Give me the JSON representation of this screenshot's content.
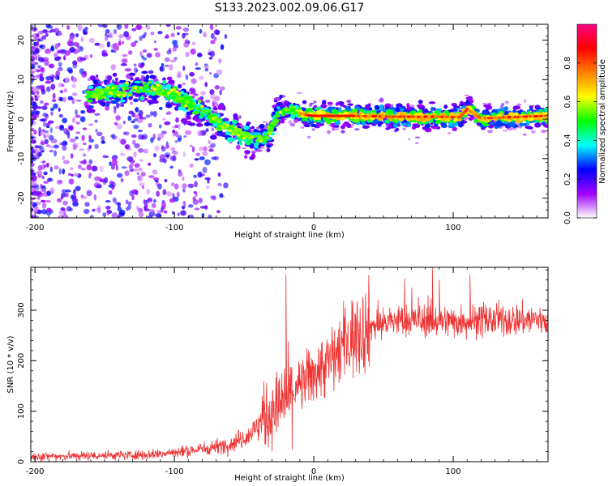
{
  "title": "S133.2023.002.09.06.G17",
  "chart_data": [
    {
      "type": "heatmap",
      "xlabel": "Height of straight line (km)",
      "ylabel": "Frequency (Hz)",
      "xlim": [
        -203,
        168
      ],
      "ylim": [
        -25,
        24
      ],
      "x_ticks": [
        -200,
        -100,
        0,
        100
      ],
      "y_ticks": [
        -20,
        -10,
        0,
        10,
        20
      ],
      "colorbar": {
        "label": "Normalized spectral amplitude",
        "range": [
          0,
          1
        ],
        "ticks": [
          "0.0",
          "0.2",
          "0.4",
          "0.6",
          "0.8"
        ],
        "colors": [
          "#ffffff",
          "#a000ff",
          "#0000ff",
          "#00ffff",
          "#00ff00",
          "#ffff00",
          "#ff8000",
          "#ff0000",
          "#ff0080"
        ]
      },
      "ridge": {
        "x": [
          -162,
          -140,
          -120,
          -105,
          -95,
          -85,
          -75,
          -65,
          -55,
          -45,
          -35,
          -30,
          -25,
          -20,
          -15,
          -5,
          0,
          30,
          60,
          90,
          105,
          110,
          120,
          140,
          168
        ],
        "y": [
          6,
          7,
          8,
          7,
          5,
          3,
          1,
          -2,
          -3,
          -5,
          -5,
          -2,
          2,
          2.5,
          2,
          1,
          0.8,
          0.8,
          0.6,
          0.6,
          0.5,
          2.5,
          0.2,
          0.5,
          0.8
        ]
      }
    },
    {
      "type": "line",
      "xlabel": "Height of straight line (km)",
      "ylabel": "SNR (10 * v/v)",
      "xlim": [
        -203,
        168
      ],
      "ylim": [
        0,
        385
      ],
      "x_ticks": [
        -200,
        -100,
        0,
        100
      ],
      "y_ticks": [
        0,
        100,
        200,
        300
      ],
      "color": "#ee3333",
      "trend": {
        "x": [
          -203,
          -160,
          -120,
          -100,
          -80,
          -60,
          -45,
          -35,
          -25,
          -10,
          0,
          10,
          20,
          30,
          40,
          60,
          100,
          130,
          168
        ],
        "y": [
          10,
          12,
          14,
          18,
          25,
          35,
          55,
          90,
          110,
          150,
          175,
          195,
          225,
          255,
          268,
          280,
          278,
          280,
          282
        ]
      },
      "peaks": [
        {
          "x": -20,
          "y": 370
        },
        {
          "x": 85,
          "y": 385
        },
        {
          "x": 90,
          "y": 360
        },
        {
          "x": 112,
          "y": 370
        }
      ]
    }
  ]
}
